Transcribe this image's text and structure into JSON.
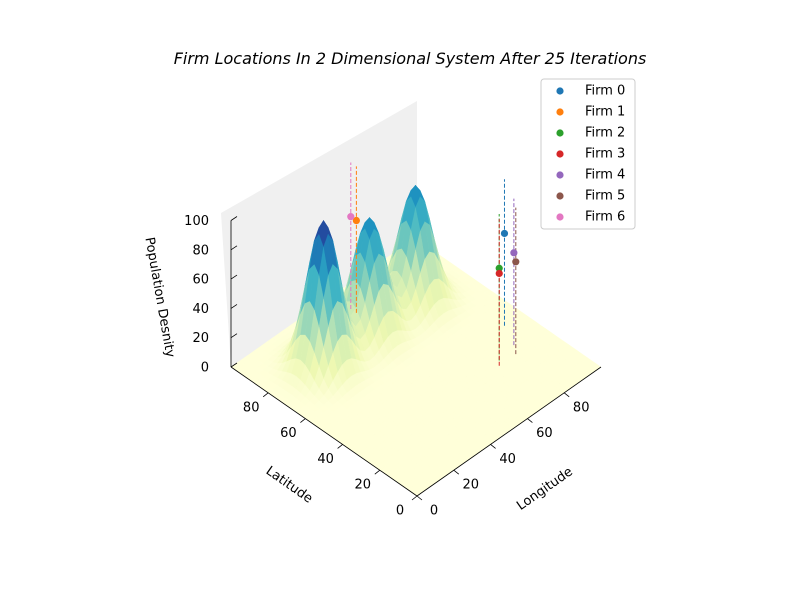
{
  "chart_data": {
    "type": "surface-3d-scatter",
    "title": "Firm Locations In 2 Dimensional System After 25 Iterations",
    "xlabel": "Longitude",
    "ylabel": "Latitude",
    "zlabel": "Population Desnity",
    "xlim": [
      0,
      100
    ],
    "ylim": [
      0,
      100
    ],
    "zlim": [
      0,
      100
    ],
    "xticks": [
      0,
      20,
      40,
      60,
      80
    ],
    "yticks": [
      0,
      20,
      40,
      60,
      80
    ],
    "zticks": [
      0,
      20,
      40,
      60,
      80,
      100
    ],
    "colormap": "YlGnBu",
    "surface_peaks": [
      {
        "x": 25,
        "y": 75,
        "height": 100
      },
      {
        "x": 75,
        "y": 75,
        "height": 80
      },
      {
        "x": 50,
        "y": 75,
        "height": 80
      }
    ],
    "series": [
      {
        "name": "Firm 0",
        "color": "#1f77b4",
        "x": 90,
        "y": 42,
        "z": 63
      },
      {
        "name": "Firm 1",
        "color": "#ff7f0e",
        "x": 55,
        "y": 87,
        "z": 63
      },
      {
        "name": "Firm 2",
        "color": "#2ca02c",
        "x": 75,
        "y": 30,
        "z": 63
      },
      {
        "name": "Firm 3",
        "color": "#d62728",
        "x": 73,
        "y": 28,
        "z": 63
      },
      {
        "name": "Firm 4",
        "color": "#9467bd",
        "x": 85,
        "y": 32,
        "z": 63
      },
      {
        "name": "Firm 5",
        "color": "#8c564b",
        "x": 82,
        "y": 28,
        "z": 63
      },
      {
        "name": "Firm 6",
        "color": "#e377c2",
        "x": 55,
        "y": 90,
        "z": 63
      }
    ],
    "legend_position": "top-right"
  }
}
